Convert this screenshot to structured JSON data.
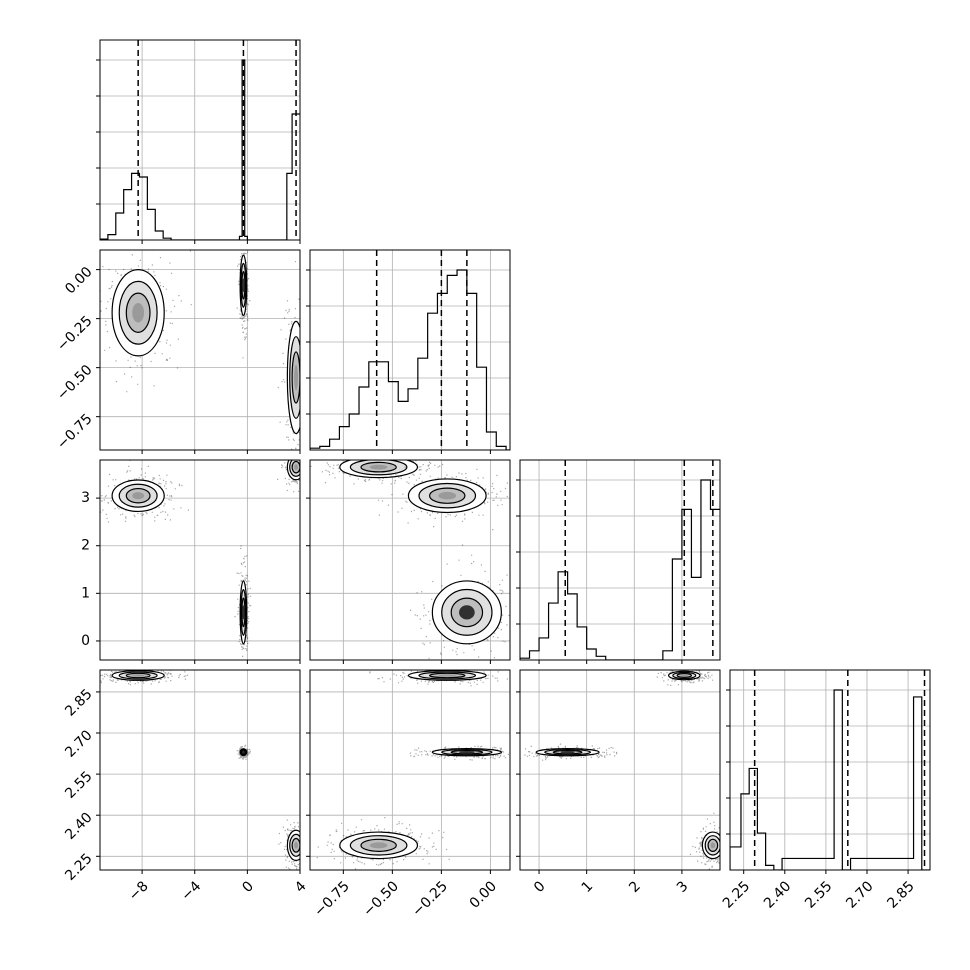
{
  "chart_data": {
    "type": "corner",
    "title": "",
    "parameters": [
      {
        "label": "",
        "range": [
          -11.2,
          4.0
        ],
        "ticks": [
          -8,
          -4,
          0,
          4
        ],
        "tick_labels": [
          "−8",
          "−4",
          "0",
          "4"
        ]
      },
      {
        "label": "",
        "range": [
          -0.92,
          0.1
        ],
        "ticks": [
          -0.75,
          -0.5,
          -0.25,
          0.0
        ],
        "tick_labels": [
          "−0.75",
          "−0.50",
          "−0.25",
          "0.00"
        ]
      },
      {
        "label": "",
        "range": [
          -0.4,
          3.8
        ],
        "ticks": [
          0,
          1,
          2,
          3
        ],
        "tick_labels": [
          "0",
          "1",
          "2",
          "3"
        ]
      },
      {
        "label": "",
        "range": [
          2.2,
          2.93
        ],
        "ticks": [
          2.25,
          2.4,
          2.55,
          2.7,
          2.85
        ],
        "tick_labels": [
          "2.25",
          "2.40",
          "2.55",
          "2.70",
          "2.85"
        ]
      }
    ],
    "quantile_lines": [
      [
        -8.3,
        -0.3,
        3.7
      ],
      [
        -0.58,
        -0.25,
        -0.12
      ],
      [
        0.55,
        3.05,
        3.65
      ],
      [
        2.29,
        2.63,
        2.91
      ]
    ],
    "histograms": [
      {
        "parameter": 0,
        "bin_edges": [
          -11.2,
          -10.6,
          -10.0,
          -9.4,
          -8.8,
          -8.2,
          -7.6,
          -7.0,
          -6.4,
          -5.8,
          -0.6,
          -0.4,
          -0.2,
          0.0,
          3.0,
          3.4,
          3.8,
          4.0
        ],
        "counts": [
          0.005,
          0.03,
          0.15,
          0.28,
          0.37,
          0.35,
          0.17,
          0.05,
          0.01,
          0,
          0.02,
          1.0,
          0.02,
          0,
          0.37,
          0.7,
          0.7
        ]
      },
      {
        "parameter": 1,
        "bin_edges": [
          -0.92,
          -0.87,
          -0.82,
          -0.77,
          -0.72,
          -0.67,
          -0.62,
          -0.57,
          -0.52,
          -0.47,
          -0.42,
          -0.37,
          -0.32,
          -0.27,
          -0.22,
          -0.17,
          -0.12,
          -0.07,
          -0.02,
          0.03,
          0.08,
          0.1
        ],
        "counts": [
          0.01,
          0.02,
          0.06,
          0.13,
          0.2,
          0.35,
          0.49,
          0.49,
          0.38,
          0.27,
          0.34,
          0.51,
          0.76,
          0.87,
          0.97,
          1.0,
          0.87,
          0.46,
          0.1,
          0.02,
          0.0
        ]
      },
      {
        "parameter": 2,
        "bin_edges": [
          -0.4,
          -0.2,
          0.0,
          0.2,
          0.4,
          0.6,
          0.8,
          1.0,
          1.2,
          1.4,
          2.6,
          2.8,
          3.0,
          3.2,
          3.4,
          3.6,
          3.8
        ],
        "counts": [
          0.01,
          0.05,
          0.12,
          0.31,
          0.48,
          0.36,
          0.18,
          0.06,
          0.02,
          0,
          0.05,
          0.55,
          0.82,
          0.45,
          0.98,
          0.82
        ]
      },
      {
        "parameter": 3,
        "bin_edges": [
          2.2,
          2.24,
          2.27,
          2.3,
          2.33,
          2.36,
          2.39,
          2.58,
          2.61,
          2.64,
          2.87,
          2.9,
          2.93
        ],
        "counts": [
          0.1,
          0.33,
          0.44,
          0.16,
          0.02,
          0,
          0.05,
          0.78,
          0,
          0.05,
          0.75,
          0
        ]
      }
    ],
    "clusters": [
      {
        "x": 0,
        "y": 1,
        "cx": -8.3,
        "cy": -0.22,
        "sx": 0.9,
        "sy": 0.1,
        "weight": 0.37
      },
      {
        "x": 0,
        "y": 1,
        "cx": -0.3,
        "cy": -0.08,
        "sx": 0.08,
        "sy": 0.07,
        "weight": 1.0
      },
      {
        "x": 0,
        "y": 1,
        "cx": 3.7,
        "cy": -0.55,
        "sx": 0.3,
        "sy": 0.13,
        "weight": 0.7
      },
      {
        "x": 0,
        "y": 2,
        "cx": -8.3,
        "cy": 3.05,
        "sx": 0.9,
        "sy": 0.15,
        "weight": 0.4
      },
      {
        "x": 0,
        "y": 2,
        "cx": -0.3,
        "cy": 0.6,
        "sx": 0.08,
        "sy": 0.3,
        "weight": 1.0
      },
      {
        "x": 0,
        "y": 2,
        "cx": 3.7,
        "cy": 3.65,
        "sx": 0.3,
        "sy": 0.12,
        "weight": 0.7
      },
      {
        "x": 0,
        "y": 3,
        "cx": -8.3,
        "cy": 2.91,
        "sx": 0.9,
        "sy": 0.008,
        "weight": 0.4
      },
      {
        "x": 0,
        "y": 3,
        "cx": -0.3,
        "cy": 2.63,
        "sx": 0.08,
        "sy": 0.004,
        "weight": 1.0
      },
      {
        "x": 0,
        "y": 3,
        "cx": 3.7,
        "cy": 2.29,
        "sx": 0.3,
        "sy": 0.025,
        "weight": 0.7
      },
      {
        "x": 1,
        "y": 2,
        "cx": -0.57,
        "cy": 3.65,
        "sx": 0.09,
        "sy": 0.1,
        "weight": 0.7
      },
      {
        "x": 1,
        "y": 2,
        "cx": -0.22,
        "cy": 3.05,
        "sx": 0.09,
        "sy": 0.16,
        "weight": 0.8
      },
      {
        "x": 1,
        "y": 2,
        "cx": -0.12,
        "cy": 0.6,
        "sx": 0.08,
        "sy": 0.3,
        "weight": 1.0
      },
      {
        "x": 1,
        "y": 3,
        "cx": -0.22,
        "cy": 2.91,
        "sx": 0.09,
        "sy": 0.008,
        "weight": 0.8
      },
      {
        "x": 1,
        "y": 3,
        "cx": -0.12,
        "cy": 2.63,
        "sx": 0.08,
        "sy": 0.006,
        "weight": 1.0
      },
      {
        "x": 1,
        "y": 3,
        "cx": -0.57,
        "cy": 2.29,
        "sx": 0.09,
        "sy": 0.022,
        "weight": 0.7
      },
      {
        "x": 2,
        "y": 3,
        "cx": 3.05,
        "cy": 2.91,
        "sx": 0.15,
        "sy": 0.007,
        "weight": 0.8
      },
      {
        "x": 2,
        "y": 3,
        "cx": 0.6,
        "cy": 2.63,
        "sx": 0.3,
        "sy": 0.006,
        "weight": 1.0
      },
      {
        "x": 2,
        "y": 3,
        "cx": 3.65,
        "cy": 2.29,
        "sx": 0.1,
        "sy": 0.022,
        "weight": 0.7
      }
    ],
    "grid": true,
    "legend": "none"
  }
}
